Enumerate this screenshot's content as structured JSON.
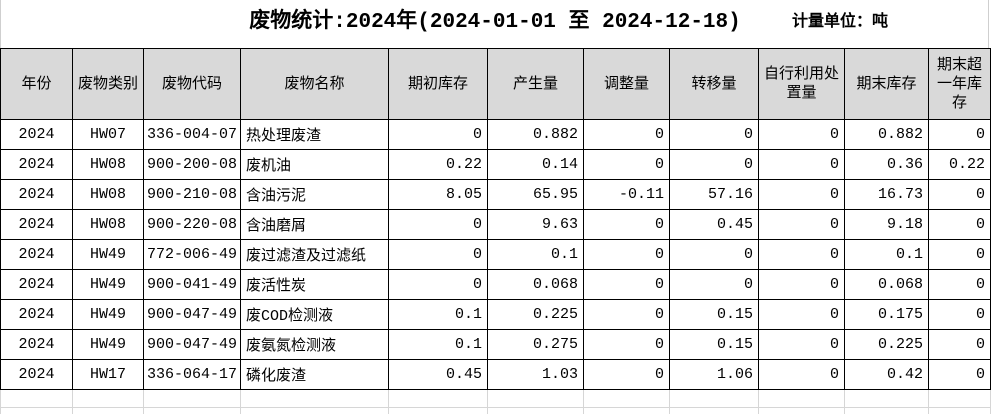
{
  "header": {
    "title": "废物统计:2024年(2024-01-01 至 2024-12-18)",
    "unit_label": "计量单位：吨"
  },
  "table": {
    "columns": [
      "年份",
      "废物类别",
      "废物代码",
      "废物名称",
      "期初库存",
      "产生量",
      "调整量",
      "转移量",
      "自行利用处置量",
      "期末库存",
      "期末超一年库存"
    ],
    "rows": [
      [
        "2024",
        "HW07",
        "336-004-07",
        "热处理废渣",
        "0",
        "0.882",
        "0",
        "0",
        "0",
        "0.882",
        "0"
      ],
      [
        "2024",
        "HW08",
        "900-200-08",
        "废机油",
        "0.22",
        "0.14",
        "0",
        "0",
        "0",
        "0.36",
        "0.22"
      ],
      [
        "2024",
        "HW08",
        "900-210-08",
        "含油污泥",
        "8.05",
        "65.95",
        "-0.11",
        "57.16",
        "0",
        "16.73",
        "0"
      ],
      [
        "2024",
        "HW08",
        "900-220-08",
        "含油磨屑",
        "0",
        "9.63",
        "0",
        "0.45",
        "0",
        "9.18",
        "0"
      ],
      [
        "2024",
        "HW49",
        "772-006-49",
        "废过滤渣及过滤纸",
        "0",
        "0.1",
        "0",
        "0",
        "0",
        "0.1",
        "0"
      ],
      [
        "2024",
        "HW49",
        "900-041-49",
        "废活性炭",
        "0",
        "0.068",
        "0",
        "0",
        "0",
        "0.068",
        "0"
      ],
      [
        "2024",
        "HW49",
        "900-047-49",
        "废COD检测液",
        "0.1",
        "0.225",
        "0",
        "0.15",
        "0",
        "0.175",
        "0"
      ],
      [
        "2024",
        "HW49",
        "900-047-49",
        "废氨氮检测液",
        "0.1",
        "0.275",
        "0",
        "0.15",
        "0",
        "0.225",
        "0"
      ],
      [
        "2024",
        "HW17",
        "336-064-17",
        "磷化废渣",
        "0.45",
        "1.03",
        "0",
        "1.06",
        "0",
        "0.42",
        "0"
      ]
    ]
  },
  "colors": {
    "header_bg": "#d9d9d9",
    "table_border": "#000000",
    "faint_gridline": "#d6d6d6",
    "background": "#ffffff",
    "text": "#000000"
  }
}
